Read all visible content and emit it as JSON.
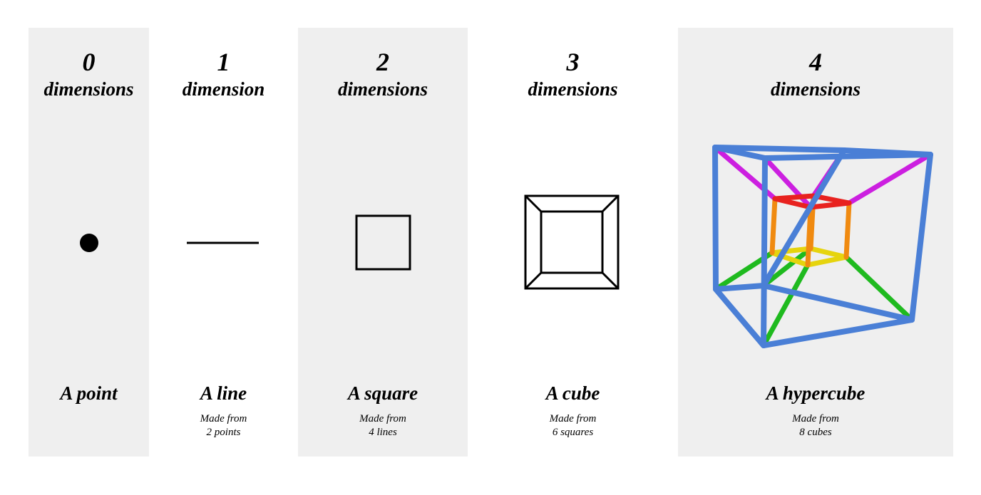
{
  "columns": [
    {
      "number": "0",
      "dimension_word": "dimensions",
      "shape_name": "A point",
      "made_from_line1": "",
      "made_from_line2": "",
      "icon": "point-icon"
    },
    {
      "number": "1",
      "dimension_word": "dimension",
      "shape_name": "A line",
      "made_from_line1": "Made from",
      "made_from_line2": "2 points",
      "icon": "line-icon"
    },
    {
      "number": "2",
      "dimension_word": "dimensions",
      "shape_name": "A square",
      "made_from_line1": "Made from",
      "made_from_line2": "4 lines",
      "icon": "square-icon"
    },
    {
      "number": "3",
      "dimension_word": "dimensions",
      "shape_name": "A cube",
      "made_from_line1": "Made from",
      "made_from_line2": "6 squares",
      "icon": "cube-icon"
    },
    {
      "number": "4",
      "dimension_word": "dimensions",
      "shape_name": "A hypercube",
      "made_from_line1": "Made from",
      "made_from_line2": "8 cubes",
      "icon": "hypercube-icon"
    }
  ],
  "colors": {
    "panel_background": "#efefef",
    "outer_cube": "#4a7fd6",
    "connector_top": "#cc1fe0",
    "inner_top": "#e8221f",
    "inner_sides": "#f08a10",
    "inner_bottom": "#e6d40e",
    "connector_bottom": "#1fba1f"
  }
}
